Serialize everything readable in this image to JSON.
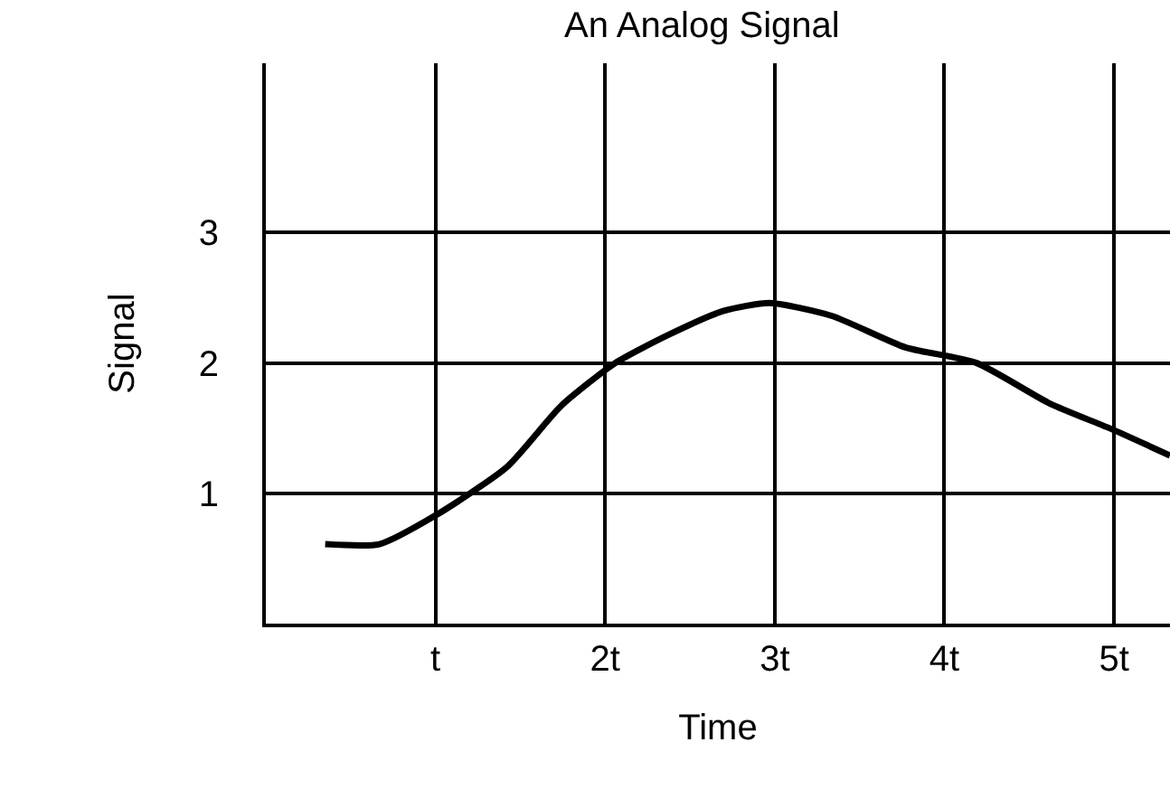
{
  "chart_data": {
    "type": "line",
    "title": "An Analog Signal",
    "xlabel": "Time",
    "ylabel": "Signal",
    "x": [
      0.35,
      0.67,
      1,
      1.42,
      1.74,
      2.06,
      2.38,
      2.7,
      2.97,
      3.34,
      3.77,
      4.19,
      4.62,
      4.99,
      5.33
    ],
    "series": [
      {
        "color": "#000000",
        "values": [
          0.61,
          0.61,
          0.83,
          1.2,
          1.67,
          2.0,
          2.22,
          2.4,
          2.46,
          2.36,
          2.12,
          2.0,
          1.69,
          1.49,
          1.29
        ]
      }
    ],
    "xlim": [
      0,
      5.33
    ],
    "ylim": [
      0,
      4.3
    ],
    "xticks": [
      {
        "value": 1,
        "label": "t"
      },
      {
        "value": 2,
        "label": "2t"
      },
      {
        "value": 3,
        "label": "3t"
      },
      {
        "value": 4,
        "label": "4t"
      },
      {
        "value": 5,
        "label": "5t"
      }
    ],
    "yticks": [
      1,
      2,
      3
    ],
    "grid": true,
    "marker": "none",
    "line_style": "solid"
  }
}
